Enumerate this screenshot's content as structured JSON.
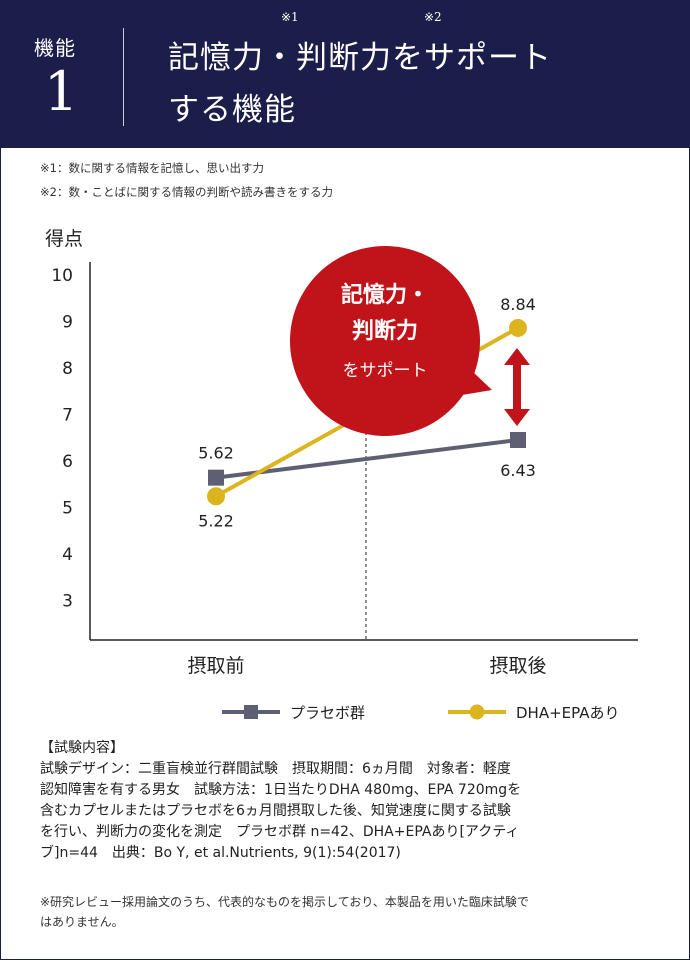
{
  "header": {
    "feature_label": "機能",
    "feature_number": "1",
    "title_line1_a": "記憶力",
    "title_line1_sup1": "※1",
    "title_line1_b": "・判断力",
    "title_line1_sup2": "※2",
    "title_line1_c": "をサポート",
    "title_line2": "する機能"
  },
  "notes": [
    "※1：数に関する情報を記憶し、思い出す力",
    "※2：数・ことばに関する情報の判断や読み書きをする力"
  ],
  "callout": {
    "line1": "記憶力・",
    "line2": "判断力",
    "line3": "をサポート"
  },
  "colors": {
    "navy": "#1b1e4a",
    "placebo": "#5e5f72",
    "dha": "#dcb41e",
    "callout": "#c0141a",
    "arrow": "#c0141a"
  },
  "chart_data": {
    "type": "line",
    "ylabel": "得点",
    "yticks": [
      "10",
      "9",
      "8",
      "7",
      "6",
      "5",
      "4",
      "3"
    ],
    "ylim": [
      2,
      10
    ],
    "categories": [
      "摂取前",
      "摂取後"
    ],
    "series": [
      {
        "name": "プラセボ群",
        "values": [
          5.62,
          6.43
        ],
        "labels": [
          "5.62",
          "6.43"
        ],
        "marker": "square"
      },
      {
        "name": "DHA+EPAあり",
        "values": [
          5.22,
          8.84
        ],
        "labels": [
          "5.22",
          "8.84"
        ],
        "marker": "circle"
      }
    ]
  },
  "study": {
    "heading": "【試験内容】",
    "lines": [
      "試験デザイン：二重盲検並行群間試験　摂取期間：6ヵ月間　対象者：軽度",
      "認知障害を有する男女　試験方法：1日当たりDHA 480mg、EPA 720mgを",
      "含むカプセルまたはプラセボを6ヵ月間摂取した後、知覚速度に関する試験",
      "を行い、判断力の変化を測定　プラセボ群 n=42、DHA+EPAあり[アクティ",
      "ブ]n=44　出典：Bo Y, et al.Nutrients, 9(1):54(2017)"
    ]
  },
  "footnote": [
    "※研究レビュー採用論文のうち、代表的なものを掲示しており、本製品を用いた臨床試験で",
    "はありません。"
  ]
}
